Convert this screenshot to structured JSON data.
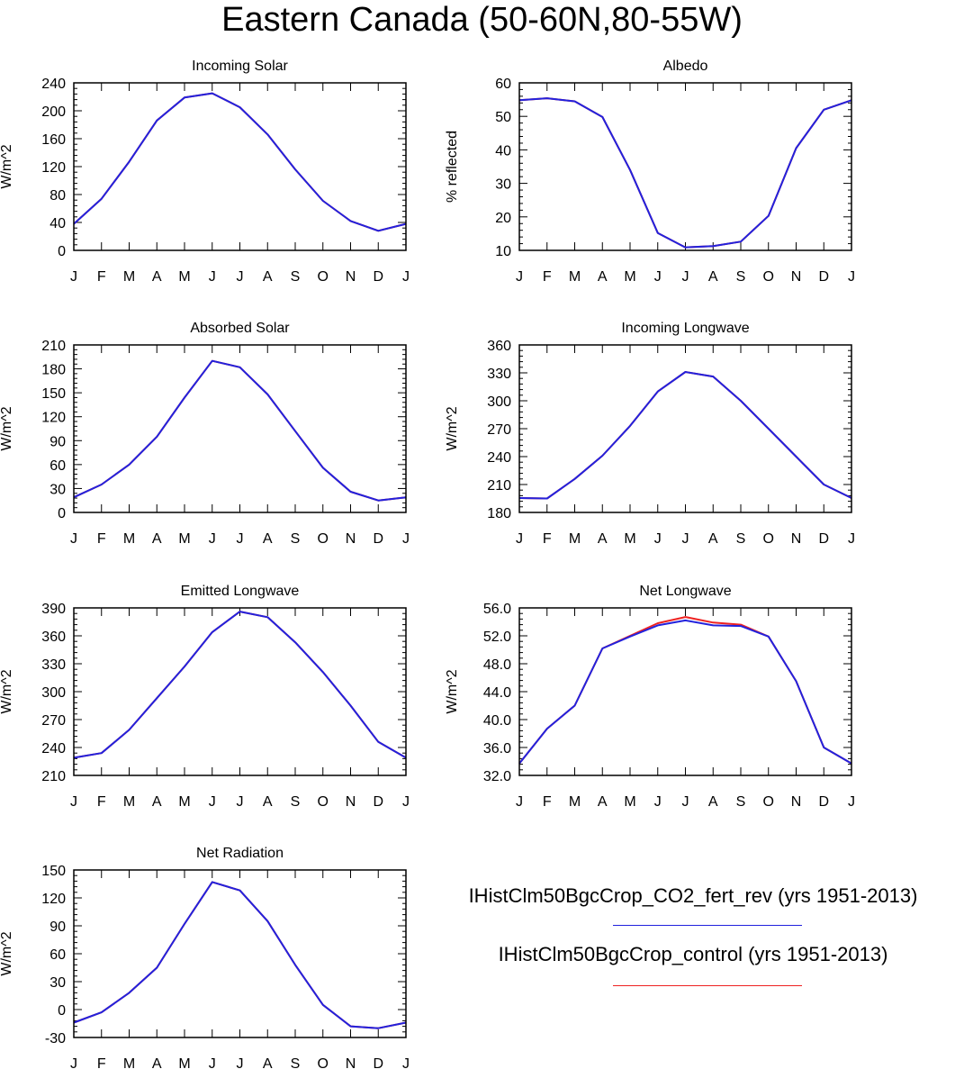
{
  "figure": {
    "title": "Eastern Canada (50-60N,80-55W)"
  },
  "colors": {
    "fert_rev": "#2222dd",
    "control": "#ee2222"
  },
  "legend": {
    "items": [
      {
        "label": "IHistClm50BgcCrop_CO2_fert_rev (yrs 1951-2013)",
        "color": "#2222dd"
      },
      {
        "label": "IHistClm50BgcCrop_control (yrs 1951-2013)",
        "color": "#ee2222"
      }
    ]
  },
  "chart_data": [
    {
      "type": "line",
      "title": "Incoming Solar",
      "ylabel": "W/m^2",
      "categories": [
        "J",
        "F",
        "M",
        "A",
        "M",
        "J",
        "J",
        "A",
        "S",
        "O",
        "N",
        "D",
        "J"
      ],
      "ylim": [
        0,
        240
      ],
      "yticks": [
        "0",
        "40",
        "80",
        "120",
        "160",
        "200",
        "240"
      ],
      "series": [
        {
          "color": "#ee2222",
          "values": [
            38,
            74,
            127,
            186,
            219,
            225,
            205,
            166,
            116,
            71,
            42,
            28,
            38
          ]
        },
        {
          "color": "#2222dd",
          "values": [
            38,
            74,
            127,
            186,
            219,
            225,
            205,
            166,
            116,
            71,
            42,
            28,
            38
          ]
        }
      ]
    },
    {
      "type": "line",
      "title": "Albedo",
      "ylabel": "% reflected",
      "categories": [
        "J",
        "F",
        "M",
        "A",
        "M",
        "J",
        "J",
        "A",
        "S",
        "O",
        "N",
        "D",
        "J"
      ],
      "ylim": [
        10,
        60
      ],
      "yticks": [
        "10",
        "20",
        "30",
        "40",
        "50",
        "60"
      ],
      "series": [
        {
          "color": "#ee2222",
          "values": [
            54.8,
            55.4,
            54.5,
            49.8,
            34.0,
            15.2,
            10.9,
            11.3,
            12.6,
            20.3,
            40.5,
            52.0,
            54.8
          ]
        },
        {
          "color": "#2222dd",
          "values": [
            54.8,
            55.4,
            54.5,
            49.8,
            34.0,
            15.2,
            10.9,
            11.3,
            12.6,
            20.3,
            40.5,
            52.0,
            54.8
          ]
        }
      ]
    },
    {
      "type": "line",
      "title": "Absorbed Solar",
      "ylabel": "W/m^2",
      "categories": [
        "J",
        "F",
        "M",
        "A",
        "M",
        "J",
        "J",
        "A",
        "S",
        "O",
        "N",
        "D",
        "J"
      ],
      "ylim": [
        0,
        210
      ],
      "yticks": [
        "0",
        "30",
        "60",
        "90",
        "120",
        "150",
        "180",
        "210"
      ],
      "series": [
        {
          "color": "#ee2222",
          "values": [
            19,
            35,
            60,
            95,
            144,
            190,
            182,
            148,
            102,
            56,
            26,
            15,
            19
          ]
        },
        {
          "color": "#2222dd",
          "values": [
            19,
            35,
            60,
            95,
            144,
            190,
            182,
            148,
            102,
            56,
            26,
            15,
            19
          ]
        }
      ]
    },
    {
      "type": "line",
      "title": "Incoming Longwave",
      "ylabel": "W/m^2",
      "categories": [
        "J",
        "F",
        "M",
        "A",
        "M",
        "J",
        "J",
        "A",
        "S",
        "O",
        "N",
        "D",
        "J"
      ],
      "ylim": [
        180,
        360
      ],
      "yticks": [
        "180",
        "210",
        "240",
        "270",
        "300",
        "330",
        "360"
      ],
      "series": [
        {
          "color": "#ee2222",
          "values": [
            195.5,
            195,
            216,
            241,
            273,
            310,
            331,
            326,
            300,
            270,
            240,
            210,
            195.5
          ]
        },
        {
          "color": "#2222dd",
          "values": [
            195.5,
            195,
            216,
            241,
            273,
            310,
            331,
            326,
            300,
            270,
            240,
            210,
            195.5
          ]
        }
      ]
    },
    {
      "type": "line",
      "title": "Emitted Longwave",
      "ylabel": "W/m^2",
      "categories": [
        "J",
        "F",
        "M",
        "A",
        "M",
        "J",
        "J",
        "A",
        "S",
        "O",
        "N",
        "D",
        "J"
      ],
      "ylim": [
        210,
        390
      ],
      "yticks": [
        "210",
        "240",
        "270",
        "300",
        "330",
        "360",
        "390"
      ],
      "series": [
        {
          "color": "#ee2222",
          "values": [
            229,
            234,
            259,
            293,
            327,
            364,
            386,
            380,
            353,
            321,
            285,
            246,
            229
          ]
        },
        {
          "color": "#2222dd",
          "values": [
            229,
            234,
            259,
            293,
            327,
            364,
            386,
            380,
            353,
            321,
            285,
            246,
            229
          ]
        }
      ]
    },
    {
      "type": "line",
      "title": "Net Longwave",
      "ylabel": "W/m^2",
      "categories": [
        "J",
        "F",
        "M",
        "A",
        "M",
        "J",
        "J",
        "A",
        "S",
        "O",
        "N",
        "D",
        "J"
      ],
      "ylim": [
        32,
        56
      ],
      "yticks": [
        "32.0",
        "36.0",
        "40.0",
        "44.0",
        "48.0",
        "52.0",
        "56.0"
      ],
      "series": [
        {
          "color": "#ee2222",
          "values": [
            33.7,
            38.7,
            42.0,
            50.2,
            52.0,
            53.8,
            54.7,
            53.9,
            53.6,
            51.9,
            45.5,
            36.0,
            33.7
          ]
        },
        {
          "color": "#2222dd",
          "values": [
            33.7,
            38.7,
            42.0,
            50.2,
            51.9,
            53.5,
            54.2,
            53.5,
            53.4,
            51.9,
            45.5,
            36.0,
            33.7
          ]
        }
      ]
    },
    {
      "type": "line",
      "title": "Net Radiation",
      "ylabel": "W/m^2",
      "categories": [
        "J",
        "F",
        "M",
        "A",
        "M",
        "J",
        "J",
        "A",
        "S",
        "O",
        "N",
        "D",
        "J"
      ],
      "ylim": [
        -30,
        150
      ],
      "yticks": [
        "-30",
        "0",
        "30",
        "60",
        "90",
        "120",
        "150"
      ],
      "series": [
        {
          "color": "#ee2222",
          "values": [
            -14,
            -3,
            18,
            45,
            92,
            137,
            128,
            95,
            48,
            5,
            -18,
            -20,
            -14
          ]
        },
        {
          "color": "#2222dd",
          "values": [
            -14,
            -3,
            18,
            45,
            92,
            137,
            128,
            95,
            48,
            5,
            -18,
            -20,
            -14
          ]
        }
      ]
    }
  ]
}
